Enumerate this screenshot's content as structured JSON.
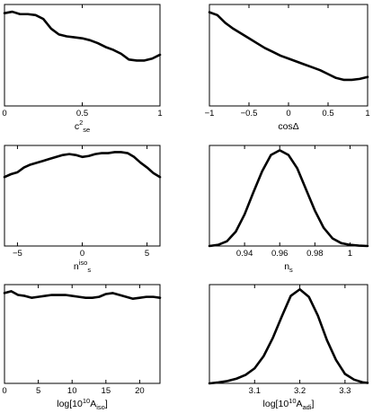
{
  "chart_data": [
    {
      "id": "c2se",
      "type": "line",
      "xlabel": {
        "base": "c",
        "sup": "2",
        "sub": "se"
      },
      "xlim": [
        0,
        1
      ],
      "ylim": [
        0,
        1.05
      ],
      "xticks": [
        0,
        0.5,
        1
      ],
      "xtick_labels": [
        "0",
        "0.5",
        "1"
      ],
      "x": [
        0,
        0.05,
        0.1,
        0.15,
        0.2,
        0.25,
        0.3,
        0.35,
        0.4,
        0.45,
        0.5,
        0.55,
        0.6,
        0.65,
        0.7,
        0.75,
        0.8,
        0.85,
        0.9,
        0.95,
        1.0
      ],
      "y": [
        0.96,
        0.975,
        0.95,
        0.95,
        0.94,
        0.9,
        0.8,
        0.74,
        0.72,
        0.71,
        0.7,
        0.68,
        0.65,
        0.61,
        0.58,
        0.54,
        0.48,
        0.47,
        0.47,
        0.49,
        0.53
      ]
    },
    {
      "id": "cosdelta",
      "type": "line",
      "xlabel": {
        "base": "cosΔ"
      },
      "xlim": [
        -1,
        1
      ],
      "ylim": [
        0,
        1.05
      ],
      "xticks": [
        -1,
        -0.5,
        0,
        0.5,
        1
      ],
      "xtick_labels": [
        "−1",
        "−0.5",
        "0",
        "0.5",
        "1"
      ],
      "x": [
        -1,
        -0.9,
        -0.8,
        -0.7,
        -0.6,
        -0.5,
        -0.4,
        -0.3,
        -0.2,
        -0.1,
        0,
        0.1,
        0.2,
        0.3,
        0.4,
        0.5,
        0.6,
        0.7,
        0.8,
        0.9,
        1.0
      ],
      "y": [
        0.97,
        0.94,
        0.86,
        0.8,
        0.75,
        0.7,
        0.65,
        0.6,
        0.56,
        0.52,
        0.49,
        0.46,
        0.43,
        0.4,
        0.37,
        0.33,
        0.29,
        0.27,
        0.27,
        0.28,
        0.3
      ]
    },
    {
      "id": "nsiso",
      "type": "line",
      "xlabel": {
        "base": "n",
        "sup": "iso",
        "sub": "s"
      },
      "xlim": [
        -6,
        6
      ],
      "ylim": [
        0,
        1.05
      ],
      "xticks": [
        -5,
        0,
        5
      ],
      "xtick_labels": [
        "−5",
        "0",
        "5"
      ],
      "x": [
        -6,
        -5.5,
        -5,
        -4.5,
        -4,
        -3.5,
        -3,
        -2.5,
        -2,
        -1.5,
        -1,
        -0.5,
        0,
        0.5,
        1,
        1.5,
        2,
        2.5,
        3,
        3.5,
        4,
        4.5,
        5,
        5.5,
        6
      ],
      "y": [
        0.72,
        0.75,
        0.77,
        0.82,
        0.85,
        0.87,
        0.89,
        0.91,
        0.93,
        0.95,
        0.96,
        0.95,
        0.93,
        0.94,
        0.96,
        0.97,
        0.97,
        0.98,
        0.98,
        0.97,
        0.93,
        0.87,
        0.82,
        0.76,
        0.72
      ]
    },
    {
      "id": "ns",
      "type": "line",
      "xlabel": {
        "base": "n",
        "sub": "s"
      },
      "xlim": [
        0.92,
        1.01
      ],
      "ylim": [
        0,
        1.05
      ],
      "xticks": [
        0.94,
        0.96,
        0.98,
        1.0
      ],
      "xtick_labels": [
        "0.94",
        "0.96",
        "0.98",
        "1"
      ],
      "x": [
        0.92,
        0.925,
        0.93,
        0.935,
        0.94,
        0.945,
        0.95,
        0.955,
        0.96,
        0.965,
        0.97,
        0.975,
        0.98,
        0.985,
        0.99,
        0.995,
        1.0,
        1.005,
        1.01
      ],
      "y": [
        0.0,
        0.012,
        0.05,
        0.15,
        0.33,
        0.56,
        0.78,
        0.95,
        1.0,
        0.95,
        0.81,
        0.59,
        0.37,
        0.19,
        0.08,
        0.03,
        0.012,
        0.004,
        0.0
      ]
    },
    {
      "id": "aiso",
      "type": "line",
      "xlabel": {
        "base": "log[10",
        "sup": "10",
        "base2": "A",
        "sub": "iso",
        "tail": "]"
      },
      "xlim": [
        0,
        23
      ],
      "ylim": [
        0,
        1.05
      ],
      "xticks": [
        0,
        5,
        10,
        15,
        20
      ],
      "xtick_labels": [
        "0",
        "5",
        "10",
        "15",
        "20"
      ],
      "x": [
        0,
        1,
        2,
        3,
        4,
        5,
        6,
        7,
        8,
        9,
        10,
        11,
        12,
        13,
        14,
        15,
        16,
        17,
        18,
        19,
        20,
        21,
        22,
        23
      ],
      "y": [
        0.96,
        0.98,
        0.94,
        0.93,
        0.91,
        0.92,
        0.93,
        0.94,
        0.94,
        0.94,
        0.93,
        0.92,
        0.91,
        0.91,
        0.92,
        0.95,
        0.96,
        0.94,
        0.92,
        0.9,
        0.91,
        0.92,
        0.92,
        0.91
      ]
    },
    {
      "id": "aadi",
      "type": "line",
      "xlabel": {
        "base": "log[10",
        "sup": "10",
        "base2": "A",
        "sub": "adi",
        "tail": "]"
      },
      "xlim": [
        3.0,
        3.35
      ],
      "ylim": [
        0,
        1.05
      ],
      "xticks": [
        3.1,
        3.2,
        3.3
      ],
      "xtick_labels": [
        "3.1",
        "3.2",
        "3.3"
      ],
      "x": [
        3.0,
        3.02,
        3.04,
        3.06,
        3.08,
        3.1,
        3.12,
        3.14,
        3.16,
        3.18,
        3.2,
        3.22,
        3.24,
        3.26,
        3.28,
        3.3,
        3.32,
        3.34,
        3.35
      ],
      "y": [
        0.0,
        0.01,
        0.025,
        0.05,
        0.09,
        0.16,
        0.29,
        0.48,
        0.71,
        0.93,
        1.0,
        0.92,
        0.72,
        0.46,
        0.25,
        0.1,
        0.04,
        0.01,
        0.005
      ]
    }
  ]
}
